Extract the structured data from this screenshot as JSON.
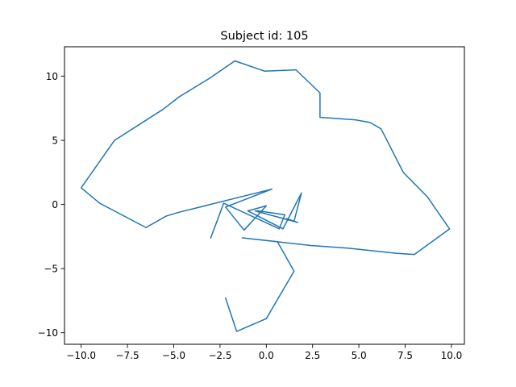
{
  "chart_data": {
    "type": "line",
    "title": "Subject id: 105",
    "xlabel": "",
    "ylabel": "",
    "xlim": [
      -10.9,
      10.7
    ],
    "ylim": [
      -10.9,
      12.3
    ],
    "grid": false,
    "color": "#1f77b4",
    "xticks": [
      {
        "value": -10.0,
        "label": "−10.0"
      },
      {
        "value": -7.5,
        "label": "−7.5"
      },
      {
        "value": -5.0,
        "label": "−5.0"
      },
      {
        "value": -2.5,
        "label": "−2.5"
      },
      {
        "value": 0.0,
        "label": "0.0"
      },
      {
        "value": 2.5,
        "label": "2.5"
      },
      {
        "value": 5.0,
        "label": "5.0"
      },
      {
        "value": 7.5,
        "label": "7.5"
      },
      {
        "value": 10.0,
        "label": "10.0"
      }
    ],
    "yticks": [
      {
        "value": -10,
        "label": "−10"
      },
      {
        "value": -5,
        "label": "−5"
      },
      {
        "value": 0,
        "label": "0"
      },
      {
        "value": 5,
        "label": "5"
      },
      {
        "value": 10,
        "label": "10"
      }
    ],
    "series": [
      {
        "name": "",
        "x": [
          -2.2,
          -1.6,
          0.0,
          1.5,
          0.6,
          -1.3,
          2.4,
          4.4,
          7.0,
          8.0,
          9.9,
          9.8,
          8.7,
          7.4,
          6.2,
          5.6,
          4.8,
          2.9,
          2.9,
          1.6,
          -0.1,
          -1.7,
          -3.0,
          -4.7,
          -5.6,
          -8.2,
          -10.0,
          -9.0,
          -6.5,
          -5.4,
          -4.7,
          0.3,
          -2.2,
          -1.2,
          0.0,
          -1.0,
          0.9,
          1.9,
          1.5,
          1.1,
          1.7,
          -0.6,
          -0.4,
          1.0,
          0.7,
          -2.3,
          -3.0
        ],
        "y": [
          -7.3,
          -9.9,
          -8.9,
          -5.2,
          -2.9,
          -2.6,
          -3.2,
          -3.4,
          -3.8,
          -3.9,
          -1.9,
          -1.7,
          0.6,
          2.5,
          5.9,
          6.4,
          6.6,
          6.8,
          8.7,
          10.5,
          10.4,
          11.2,
          9.9,
          8.4,
          7.4,
          5.0,
          1.3,
          0.1,
          -1.8,
          -0.9,
          -0.6,
          1.2,
          -0.2,
          -2.0,
          -0.1,
          -0.5,
          -1.9,
          0.9,
          -1.3,
          -1.1,
          -1.4,
          -0.5,
          -0.5,
          -0.8,
          -1.9,
          0.1,
          -2.6
        ]
      }
    ]
  }
}
